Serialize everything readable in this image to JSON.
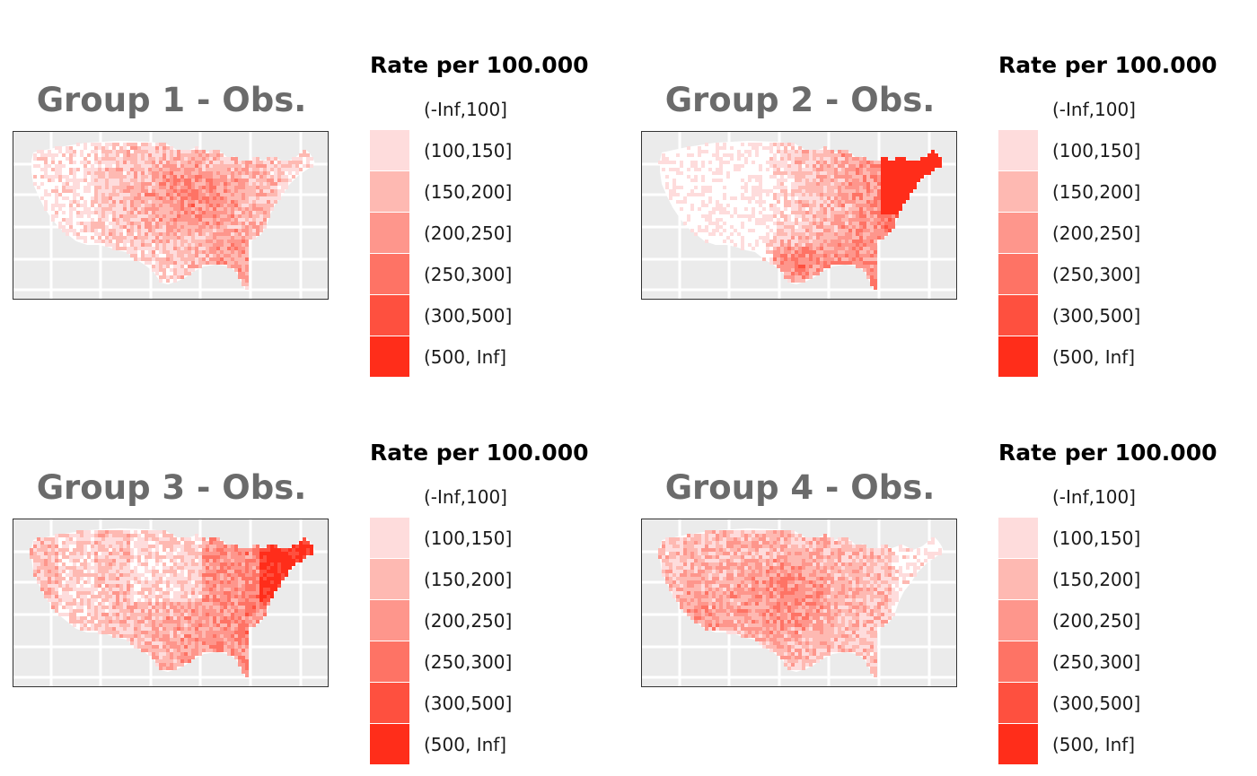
{
  "legend": {
    "title": "Rate per 100.000",
    "items": [
      {
        "label": "(-Inf,100]",
        "color": "#ffffff"
      },
      {
        "label": "(100,150]",
        "color": "#fedcdc"
      },
      {
        "label": "(150,200]",
        "color": "#feb9b2"
      },
      {
        "label": "(200,250]",
        "color": "#fe968c"
      },
      {
        "label": "(250,300]",
        "color": "#fe7365"
      },
      {
        "label": "(300,500]",
        "color": "#fe503f"
      },
      {
        "label": "(500, Inf]",
        "color": "#ff2d1a"
      }
    ]
  },
  "panels": [
    {
      "title": "Group 1 - Obs.",
      "color_profile": "midwest-south-high"
    },
    {
      "title": "Group 2 - Obs.",
      "color_profile": "northeast-south-high"
    },
    {
      "title": "Group 3 - Obs.",
      "color_profile": "east-coast-high"
    },
    {
      "title": "Group 4 - Obs.",
      "color_profile": "central-west-high"
    }
  ]
}
